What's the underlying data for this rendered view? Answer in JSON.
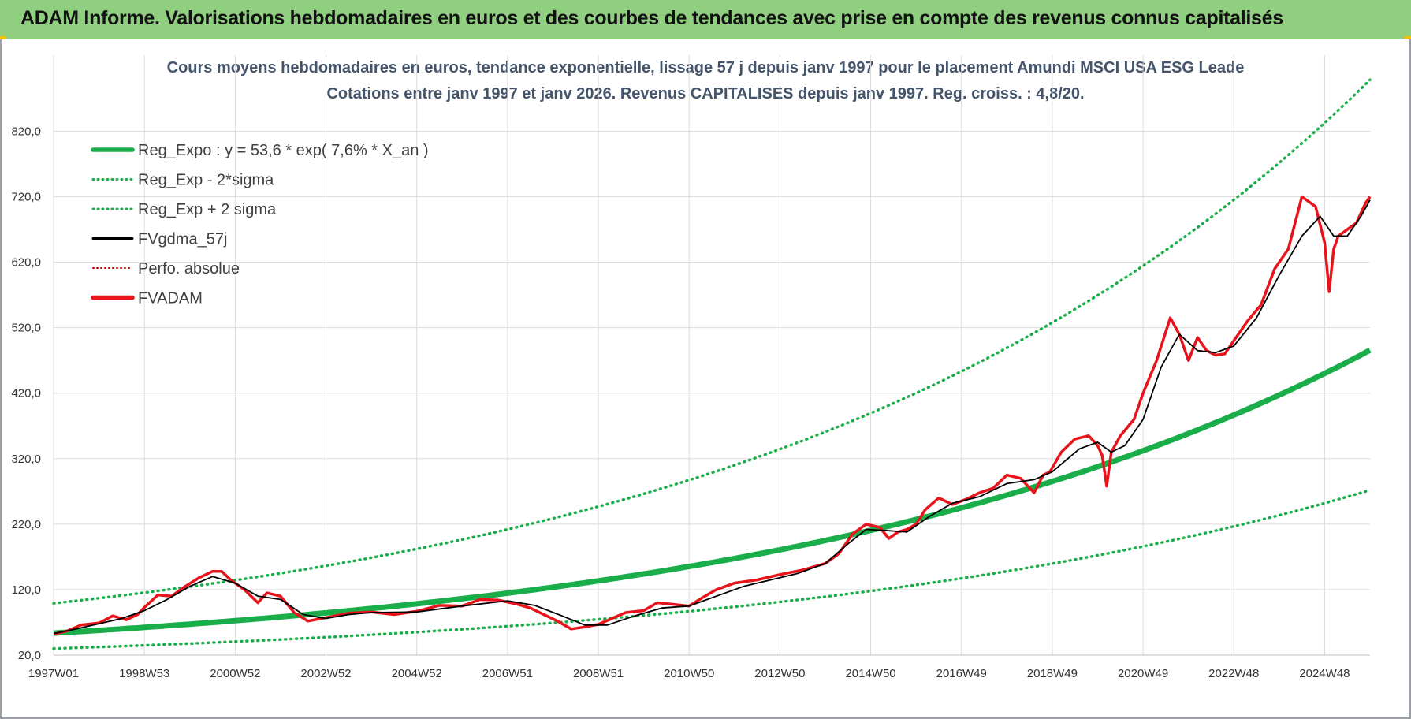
{
  "banner": {
    "title": "ADAM Informe. Valorisations hebdomadaires en euros et des courbes de tendances avec prise en compte des revenus connus capitalisés"
  },
  "colors": {
    "banner_bg": "#8fcf7f",
    "reg_green": "#1aae4a",
    "price_red": "#e8141c",
    "smooth_black": "#000000",
    "perfo_red": "#c00000",
    "grid": "#dcdcdc",
    "title_text": "#44546a"
  },
  "chart_data": {
    "type": "line",
    "title": "Cours moyens hebdomadaires en euros, tendance exponentielle, lissage 57 j depuis janv 1997  pour le placement Amundi MSCI USA ESG Leade",
    "subtitle": "Cotations entre janv 1997 et janv 2026. Revenus CAPITALISES depuis janv 1997. Reg. croiss. : 4,8/20.",
    "xlabel": "",
    "ylabel": "",
    "ylim": [
      20,
      900
    ],
    "yticks": [
      20,
      120,
      220,
      320,
      420,
      520,
      620,
      720,
      820
    ],
    "ytick_labels": [
      "20,0",
      "120,0",
      "220,0",
      "320,0",
      "420,0",
      "520,0",
      "620,0",
      "720,0",
      "820,0"
    ],
    "xlim": [
      1997.0,
      2026.0
    ],
    "xticks": [
      1997.0,
      1999.0,
      2001.0,
      2003.0,
      2005.0,
      2007.0,
      2009.0,
      2011.0,
      2013.0,
      2015.0,
      2017.0,
      2019.0,
      2021.0,
      2023.0,
      2025.0
    ],
    "xtick_labels": [
      "1997W01",
      "1998W53",
      "2000W52",
      "2002W52",
      "2004W52",
      "2006W51",
      "2008W51",
      "2010W50",
      "2012W50",
      "2014W50",
      "2016W49",
      "2018W49",
      "2020W49",
      "2022W48",
      "2024W48"
    ],
    "grid": true,
    "legend_position": "top-left",
    "legend": [
      {
        "key": "reg",
        "label": "Reg_Expo : y = 53,6 * exp( 7,6% *  X_an )",
        "style": "thick-solid",
        "color": "#1aae4a"
      },
      {
        "key": "lower",
        "label": "Reg_Exp - 2*sigma",
        "style": "dotted",
        "color": "#1aae4a"
      },
      {
        "key": "upper",
        "label": "Reg_Exp + 2 sigma",
        "style": "dotted",
        "color": "#1aae4a"
      },
      {
        "key": "smooth",
        "label": "FVgdma_57j",
        "style": "solid",
        "color": "#000000"
      },
      {
        "key": "perfo",
        "label": "Perfo. absolue",
        "style": "dotted-thin",
        "color": "#c00000"
      },
      {
        "key": "price",
        "label": "FVADAM",
        "style": "thick-solid",
        "color": "#e8141c"
      }
    ],
    "regression": {
      "a": 53.6,
      "rate": 0.076,
      "lower_factor": 0.56,
      "upper_factor": 1.85,
      "clip_max": 900
    },
    "price_series": {
      "name": "FVADAM",
      "x": [
        1997.0,
        1997.3,
        1997.6,
        1998.0,
        1998.3,
        1998.6,
        1998.85,
        1999.0,
        1999.3,
        1999.6,
        1999.9,
        2000.2,
        2000.5,
        2000.7,
        2000.9,
        2001.2,
        2001.5,
        2001.7,
        2002.0,
        2002.3,
        2002.6,
        2002.9,
        2003.2,
        2003.5,
        2004.0,
        2004.5,
        2005.0,
        2005.5,
        2006.0,
        2006.4,
        2006.8,
        2007.2,
        2007.5,
        2007.8,
        2008.1,
        2008.4,
        2008.7,
        2009.0,
        2009.2,
        2009.6,
        2010.0,
        2010.3,
        2010.6,
        2011.0,
        2011.3,
        2011.6,
        2011.8,
        2012.0,
        2012.5,
        2013.0,
        2013.5,
        2014.0,
        2014.3,
        2014.6,
        2014.9,
        2015.2,
        2015.4,
        2015.6,
        2015.8,
        2016.0,
        2016.2,
        2016.5,
        2016.8,
        2017.1,
        2017.4,
        2017.7,
        2018.0,
        2018.3,
        2018.6,
        2018.8,
        2018.95,
        2019.2,
        2019.5,
        2019.8,
        2020.0,
        2020.1,
        2020.2,
        2020.3,
        2020.5,
        2020.8,
        2021.0,
        2021.3,
        2021.6,
        2021.8,
        2022.0,
        2022.2,
        2022.4,
        2022.6,
        2022.8,
        2023.0,
        2023.3,
        2023.6,
        2023.9,
        2024.2,
        2024.5,
        2024.8,
        2025.0,
        2025.1,
        2025.2,
        2025.3,
        2025.5,
        2025.7,
        2025.9,
        2026.0
      ],
      "y": [
        52,
        57,
        66,
        69,
        80,
        74,
        82,
        93,
        112,
        110,
        125,
        138,
        148,
        148,
        135,
        120,
        100,
        115,
        110,
        85,
        72,
        76,
        80,
        84,
        86,
        82,
        87,
        96,
        95,
        105,
        104,
        98,
        92,
        82,
        72,
        60,
        63,
        67,
        73,
        85,
        88,
        100,
        98,
        95,
        108,
        120,
        125,
        130,
        135,
        143,
        150,
        160,
        175,
        205,
        220,
        215,
        198,
        208,
        212,
        220,
        242,
        260,
        250,
        258,
        268,
        275,
        295,
        290,
        268,
        295,
        300,
        330,
        350,
        355,
        340,
        325,
        278,
        330,
        355,
        380,
        420,
        470,
        535,
        510,
        470,
        505,
        485,
        478,
        480,
        500,
        530,
        555,
        610,
        640,
        720,
        705,
        650,
        575,
        640,
        660,
        670,
        680,
        710,
        720
      ]
    },
    "smooth_series": {
      "name": "FVgdma_57j",
      "x": [
        1997.0,
        1997.5,
        1998.0,
        1998.5,
        1999.0,
        1999.5,
        2000.0,
        2000.5,
        2001.0,
        2001.5,
        2002.0,
        2002.5,
        2003.0,
        2003.5,
        2004.0,
        2005.0,
        2006.0,
        2007.0,
        2007.6,
        2008.2,
        2008.7,
        2009.2,
        2009.8,
        2010.4,
        2011.0,
        2011.6,
        2012.2,
        2012.8,
        2013.4,
        2014.0,
        2014.5,
        2014.9,
        2015.4,
        2015.8,
        2016.3,
        2016.8,
        2017.4,
        2018.0,
        2018.6,
        2019.0,
        2019.6,
        2020.0,
        2020.3,
        2020.6,
        2021.0,
        2021.4,
        2021.8,
        2022.2,
        2022.6,
        2023.0,
        2023.5,
        2024.0,
        2024.5,
        2024.9,
        2025.2,
        2025.5,
        2025.8,
        2026.0
      ],
      "y": [
        53,
        60,
        68,
        76,
        88,
        105,
        125,
        140,
        130,
        110,
        105,
        82,
        76,
        82,
        85,
        86,
        95,
        103,
        96,
        80,
        66,
        66,
        80,
        92,
        95,
        110,
        125,
        135,
        145,
        160,
        190,
        212,
        210,
        208,
        232,
        252,
        262,
        282,
        288,
        300,
        335,
        345,
        330,
        340,
        380,
        460,
        510,
        485,
        482,
        492,
        535,
        600,
        660,
        690,
        660,
        660,
        690,
        715
      ]
    }
  }
}
